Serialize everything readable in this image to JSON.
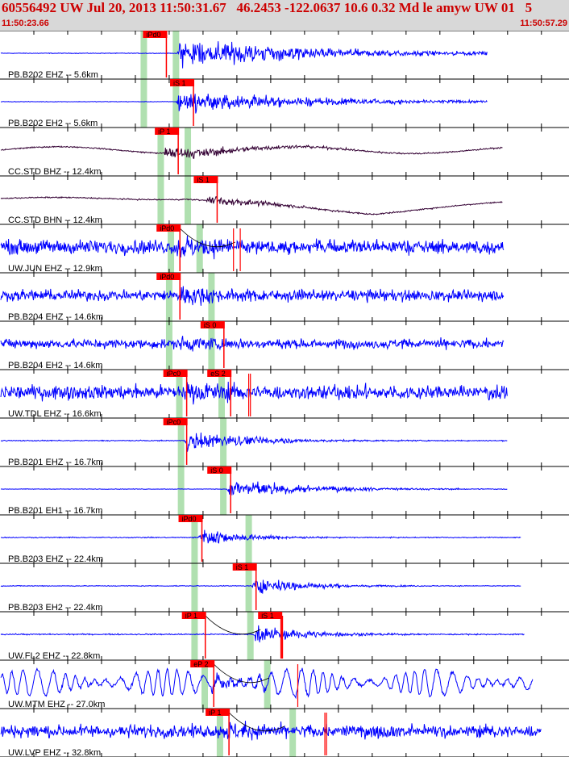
{
  "header": {
    "title": "60556492 UW Jul 20, 2013 11:50:31.67   46.2453 -122.0637 10.6 0.32 Md le amyw UW 01   5",
    "time_start": "11:50:23.66",
    "time_end": "11:50:57.29"
  },
  "colors": {
    "trace_blue": "#0000ff",
    "trace_dark": "#330033",
    "pick_red": "#ff0000",
    "window_green": "#b0e0b0",
    "grid": "#000000"
  },
  "chart_data": {
    "type": "line",
    "title": "60556492 UW Jul 20, 2013 11:50:31.67   46.2453 -122.0637 10.6 0.32 Md le amyw UW 01   5",
    "x_range_label": [
      "11:50:23.66",
      "11:50:57.29"
    ],
    "xlim": [
      0,
      33.63
    ],
    "xlabel": "",
    "ylabel": "",
    "grid": true,
    "series": [
      {
        "name": "PB.B202 EHZ -- 5.6km",
        "color": "#0000ff",
        "picks": [
          {
            "label": "iPd0",
            "t": 8.5
          }
        ],
        "p_time": 8.5,
        "s_time": 10.4,
        "onset_time": 10.5,
        "data_end": 28.8,
        "amplitude": 0.05,
        "burst": 0.9,
        "decay": 0.12,
        "noise_type": "quiet"
      },
      {
        "name": "PB.B202 EH2 -- 5.6km",
        "color": "#0000ff",
        "picks": [
          {
            "label": "iS 1",
            "t": 10.1
          }
        ],
        "p_time": 8.5,
        "s_time": 10.4,
        "onset_time": 10.4,
        "data_end": 28.8,
        "amplitude": 0.04,
        "burst": 0.7,
        "decay": 0.12,
        "noise_type": "quiet"
      },
      {
        "name": "CC.STD BHZ -- 12.4km",
        "color": "#330033",
        "picks": [
          {
            "label": "iP 1",
            "t": 9.2
          }
        ],
        "p_time": 9.5,
        "s_time": 11.1,
        "onset_time": 9.6,
        "data_end": 29.7,
        "amplitude": 0.08,
        "burst": 0.45,
        "decay": 0.18,
        "noise_type": "smooth",
        "smooth_amp": 0.15
      },
      {
        "name": "CC.STD BHN -- 12.4km",
        "color": "#330033",
        "picks": [
          {
            "label": "iS 1",
            "t": 11.5
          }
        ],
        "p_time": 9.5,
        "s_time": 11.1,
        "onset_time": 12.2,
        "data_end": 29.7,
        "amplitude": 0.08,
        "burst": 0.35,
        "decay": 0.25,
        "noise_type": "drift",
        "drift_peak": 22.0,
        "drift_amp": 0.65
      },
      {
        "name": "UW.JUN EHZ -- 12.9km",
        "color": "#0000ff",
        "picks": [
          {
            "label": "iPd0",
            "t": 9.3
          }
        ],
        "p_time": 10.1,
        "s_time": 11.8,
        "onset_time": 10.4,
        "data_end": 29.8,
        "amplitude": 0.45,
        "burst": 0.8,
        "decay": 0.35,
        "noise_type": "noisy",
        "extra_ticks": [
          13.8,
          14.2
        ]
      },
      {
        "name": "PB.B204 EHZ -- 14.6km",
        "color": "#0000ff",
        "picks": [
          {
            "label": "iPd0",
            "t": 9.3
          }
        ],
        "p_time": 10.0,
        "s_time": 12.5,
        "onset_time": 10.4,
        "data_end": 29.8,
        "amplitude": 0.35,
        "burst": 0.65,
        "decay": 0.3,
        "noise_type": "noisy"
      },
      {
        "name": "PB.B204 EH2 -- 14.6km",
        "color": "#0000ff",
        "picks": [
          {
            "label": "iS 0",
            "t": 11.9
          }
        ],
        "p_time": 10.0,
        "s_time": 12.5,
        "onset_time": 10.6,
        "data_end": 29.8,
        "amplitude": 0.3,
        "burst": 0.5,
        "decay": 0.3,
        "noise_type": "noisy"
      },
      {
        "name": "UW.TDL EHZ -- 16.6km",
        "color": "#0000ff",
        "picks": [
          {
            "label": "iPc0",
            "t": 9.7
          },
          {
            "label": "eS 2",
            "t": 12.3
          }
        ],
        "p_time": 10.6,
        "s_time": 13.1,
        "onset_time": 10.9,
        "data_end": 30.0,
        "amplitude": 0.45,
        "burst": 0.7,
        "decay": 0.3,
        "noise_type": "noisy",
        "extra_ticks": [
          14.7,
          14.8
        ]
      },
      {
        "name": "PB.B201 EHZ -- 16.7km",
        "color": "#0000ff",
        "picks": [
          {
            "label": "iPc0",
            "t": 9.7
          }
        ],
        "p_time": 10.7,
        "s_time": 13.2,
        "onset_time": 10.9,
        "data_end": 30.0,
        "amplitude": 0.08,
        "burst": 0.65,
        "decay": 0.25,
        "noise_type": "quiet"
      },
      {
        "name": "PB.B201 EH1 -- 16.7km",
        "color": "#0000ff",
        "picks": [
          {
            "label": "iS 0",
            "t": 12.3
          }
        ],
        "p_time": 10.7,
        "s_time": 13.2,
        "onset_time": 13.4,
        "data_end": 30.0,
        "amplitude": 0.04,
        "burst": 0.6,
        "decay": 0.2,
        "noise_type": "quiet"
      },
      {
        "name": "PB.B203 EHZ -- 22.4km",
        "color": "#0000ff",
        "picks": [
          {
            "label": "iPd0",
            "t": 10.6
          }
        ],
        "p_time": 11.5,
        "s_time": 14.7,
        "onset_time": 11.7,
        "data_end": 30.8,
        "amplitude": 0.08,
        "burst": 0.55,
        "decay": 0.35,
        "noise_type": "quiet"
      },
      {
        "name": "PB.B203 EH2 -- 22.4km",
        "color": "#0000ff",
        "picks": [
          {
            "label": "iS 1",
            "t": 13.8
          }
        ],
        "p_time": 11.5,
        "s_time": 14.7,
        "onset_time": 14.9,
        "data_end": 30.8,
        "amplitude": 0.06,
        "burst": 0.55,
        "decay": 0.3,
        "noise_type": "quiet"
      },
      {
        "name": "UW.FL2 EHZ -- 22.8km",
        "color": "#0000ff",
        "picks": [
          {
            "label": "iP 1",
            "t": 10.8
          },
          {
            "label": "iS 1",
            "t": 15.3
          }
        ],
        "p_time": 11.5,
        "s_time": 14.8,
        "onset_time": 15.0,
        "data_end": 31.0,
        "amplitude": 0.1,
        "burst": 0.6,
        "decay": 0.3,
        "noise_type": "quiet",
        "extra_ticks": [
          16.6,
          16.7
        ]
      },
      {
        "name": "UW.MTM EHZ -- 27.0km",
        "color": "#0000ff",
        "picks": [
          {
            "label": "eP 2",
            "t": 11.3
          }
        ],
        "p_time": 12.1,
        "s_time": 15.8,
        "onset_time": 12.3,
        "data_end": 31.5,
        "amplitude": 0.6,
        "burst": 0.4,
        "decay": 0.3,
        "noise_type": "sinus",
        "extra_ticks": [
          17.6
        ]
      },
      {
        "name": "UW.LVP EHZ -- 32.8km",
        "color": "#0000ff",
        "picks": [
          {
            "label": "iP 1",
            "t": 12.2
          }
        ],
        "p_time": 13.0,
        "s_time": 17.3,
        "onset_time": 13.2,
        "data_end": 32.0,
        "amplitude": 0.4,
        "burst": 0.55,
        "decay": 0.3,
        "noise_type": "noisy",
        "extra_ticks": [
          19.2,
          19.3
        ]
      }
    ]
  }
}
